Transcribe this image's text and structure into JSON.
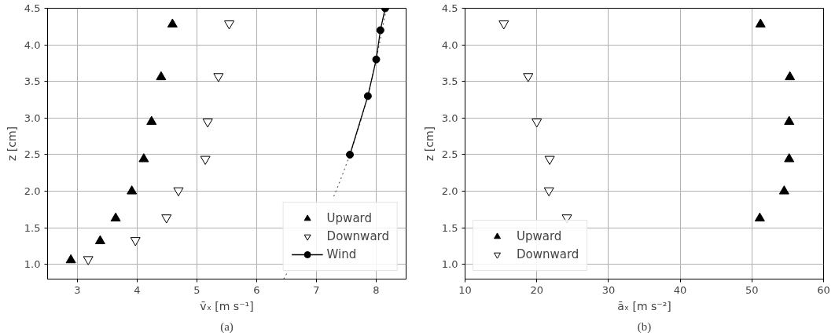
{
  "chart_data": [
    {
      "type": "scatter",
      "xlabel": "v̄ₓ [m s⁻¹]",
      "ylabel": "z [cm]",
      "annotations": [
        "(a)"
      ],
      "xlim": [
        2.5,
        8.5
      ],
      "ylim": [
        0.8,
        4.5
      ],
      "xticks": [
        3,
        4,
        5,
        6,
        7,
        8
      ],
      "yticks": [
        {
          "value": 1,
          "label": "1.0"
        },
        {
          "value": 1.5,
          "label": "1.5"
        },
        {
          "value": 2,
          "label": "2.0"
        },
        {
          "value": 2.5,
          "label": "2.5"
        },
        {
          "value": 3,
          "label": "3.0"
        },
        {
          "value": 3.5,
          "label": "3.5"
        },
        {
          "value": 4,
          "label": "4.0"
        },
        {
          "value": 4.5,
          "label": "4.5"
        }
      ],
      "grid": true,
      "legend": "bottom right",
      "series": [
        {
          "name": "Upward",
          "color": "#000000",
          "marker": "triangle",
          "x": [
            2.89,
            3.38,
            3.64,
            3.91,
            4.11,
            4.24,
            4.4,
            4.59
          ],
          "values": [
            1.06,
            1.32,
            1.63,
            2.0,
            2.44,
            2.95,
            3.56,
            4.28
          ]
        },
        {
          "name": "Downward",
          "color": "#000000",
          "marker": "triangle_down",
          "x": [
            3.18,
            3.97,
            4.49,
            4.69,
            5.14,
            5.18,
            5.36,
            5.54
          ],
          "values": [
            1.07,
            1.33,
            1.64,
            2.01,
            2.44,
            2.95,
            3.57,
            4.29
          ]
        },
        {
          "name": "Wind",
          "type": "line",
          "color": "#000000",
          "marker": "circle",
          "line_style": "solid",
          "x": [
            7.56,
            7.86,
            8.0,
            8.07,
            8.15
          ],
          "values": [
            2.5,
            3.3,
            3.8,
            4.2,
            4.5
          ]
        },
        {
          "type": "line",
          "color": "#000000",
          "marker": "none",
          "line_style": "dotted",
          "x": [
            6.45,
            6.52,
            6.9,
            7.29,
            7.4,
            7.56,
            7.7,
            7.86,
            8.0,
            8.1,
            8.17
          ],
          "values": [
            0.8,
            0.9,
            null,
            1.93,
            2.15,
            2.5,
            2.85,
            3.3,
            3.8,
            4.2,
            4.5
          ]
        }
      ]
    },
    {
      "type": "scatter",
      "xlabel": "āₓ [m s⁻²]",
      "ylabel": "z [cm]",
      "annotations": [
        "(b)"
      ],
      "xlim": [
        10,
        60
      ],
      "ylim": [
        0.8,
        4.5
      ],
      "xticks": [
        10,
        20,
        30,
        40,
        50,
        60
      ],
      "yticks": [
        {
          "value": 1,
          "label": "1.0"
        },
        {
          "value": 1.5,
          "label": "1.5"
        },
        {
          "value": 2,
          "label": "2.0"
        },
        {
          "value": 2.5,
          "label": "2.5"
        },
        {
          "value": 3,
          "label": "3.0"
        },
        {
          "value": 3.5,
          "label": "3.5"
        },
        {
          "value": 4,
          "label": "4.0"
        },
        {
          "value": 4.5,
          "label": "4.5"
        }
      ],
      "grid": true,
      "legend": "bottom left",
      "series": [
        {
          "name": "Upward",
          "color": "#000000",
          "marker": "triangle",
          "x": [
            51.1,
            54.5,
            55.2,
            55.2,
            55.3,
            51.2
          ],
          "values": [
            1.63,
            2.0,
            2.44,
            2.95,
            3.56,
            4.28
          ]
        },
        {
          "name": "Downward",
          "color": "#000000",
          "marker": "triangle_down",
          "x": [
            24.2,
            21.7,
            21.8,
            20.0,
            18.8,
            15.4
          ],
          "values": [
            1.64,
            2.01,
            2.44,
            2.95,
            3.57,
            4.29
          ]
        }
      ]
    }
  ]
}
